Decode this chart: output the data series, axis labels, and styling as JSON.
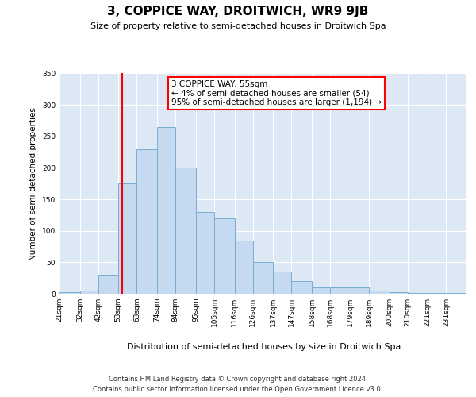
{
  "title": "3, COPPICE WAY, DROITWICH, WR9 9JB",
  "subtitle": "Size of property relative to semi-detached houses in Droitwich Spa",
  "xlabel": "Distribution of semi-detached houses by size in Droitwich Spa",
  "ylabel": "Number of semi-detached properties",
  "bar_color": "#c5d9f0",
  "bar_edge_color": "#7aadd4",
  "bg_color": "#dde8f5",
  "red_line_x": 55,
  "annotation_text": "3 COPPICE WAY: 55sqm\n← 4% of semi-detached houses are smaller (54)\n95% of semi-detached houses are larger (1,194) →",
  "footer1": "Contains HM Land Registry data © Crown copyright and database right 2024.",
  "footer2": "Contains public sector information licensed under the Open Government Licence v3.0.",
  "bins": [
    21,
    32,
    42,
    53,
    63,
    74,
    84,
    95,
    105,
    116,
    126,
    137,
    147,
    158,
    168,
    179,
    189,
    200,
    210,
    221,
    231,
    242
  ],
  "counts": [
    3,
    5,
    30,
    175,
    230,
    265,
    200,
    130,
    120,
    85,
    50,
    35,
    20,
    10,
    10,
    10,
    5,
    2,
    1,
    1,
    1
  ],
  "ylim": [
    0,
    350
  ],
  "yticks": [
    0,
    50,
    100,
    150,
    200,
    250,
    300,
    350
  ],
  "tick_labels": [
    "21sqm",
    "32sqm",
    "42sqm",
    "53sqm",
    "63sqm",
    "74sqm",
    "84sqm",
    "95sqm",
    "105sqm",
    "116sqm",
    "126sqm",
    "137sqm",
    "147sqm",
    "158sqm",
    "168sqm",
    "179sqm",
    "189sqm",
    "200sqm",
    "210sqm",
    "221sqm",
    "231sqm"
  ]
}
